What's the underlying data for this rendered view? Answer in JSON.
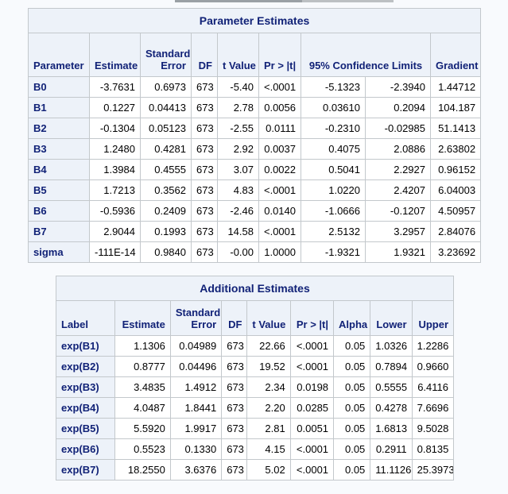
{
  "page": {
    "background_color": "#f8fafd",
    "header_bg_color": "#edf2f9",
    "header_text_color": "#112277",
    "border_color": "#c3c8cc",
    "data_text_color": "#000000"
  },
  "top_fragment": {
    "description": "bottom edge of a table cropped off at top of screenshot"
  },
  "tables": [
    {
      "title": "Parameter Estimates",
      "headers": [
        "Parameter",
        "Estimate",
        "Standard Error",
        "DF",
        "t Value",
        "Pr > |t|",
        "95% Confidence Limits",
        "Gradient"
      ],
      "rows": [
        [
          "B0",
          "-3.7631",
          "0.6973",
          "673",
          "-5.40",
          "<.0001",
          "-5.1323",
          "-2.3940",
          "1.44712"
        ],
        [
          "B1",
          "0.1227",
          "0.04413",
          "673",
          "2.78",
          "0.0056",
          "0.03610",
          "0.2094",
          "104.187"
        ],
        [
          "B2",
          "-0.1304",
          "0.05123",
          "673",
          "-2.55",
          "0.0111",
          "-0.2310",
          "-0.02985",
          "51.1413"
        ],
        [
          "B3",
          "1.2480",
          "0.4281",
          "673",
          "2.92",
          "0.0037",
          "0.4075",
          "2.0886",
          "2.63802"
        ],
        [
          "B4",
          "1.3984",
          "0.4555",
          "673",
          "3.07",
          "0.0022",
          "0.5041",
          "2.2927",
          "0.96152"
        ],
        [
          "B5",
          "1.7213",
          "0.3562",
          "673",
          "4.83",
          "<.0001",
          "1.0220",
          "2.4207",
          "6.04003"
        ],
        [
          "B6",
          "-0.5936",
          "0.2409",
          "673",
          "-2.46",
          "0.0140",
          "-1.0666",
          "-0.1207",
          "4.50957"
        ],
        [
          "B7",
          "2.9044",
          "0.1993",
          "673",
          "14.58",
          "<.0001",
          "2.5132",
          "3.2957",
          "2.84076"
        ],
        [
          "sigma",
          "-111E-14",
          "0.9840",
          "673",
          "-0.00",
          "1.0000",
          "-1.9321",
          "1.9321",
          "3.23692"
        ]
      ]
    },
    {
      "title": "Additional Estimates",
      "headers": [
        "Label",
        "Estimate",
        "Standard Error",
        "DF",
        "t Value",
        "Pr > |t|",
        "Alpha",
        "Lower",
        "Upper"
      ],
      "rows": [
        [
          "exp(B1)",
          "1.1306",
          "0.04989",
          "673",
          "22.66",
          "<.0001",
          "0.05",
          "1.0326",
          "1.2286"
        ],
        [
          "exp(B2)",
          "0.8777",
          "0.04496",
          "673",
          "19.52",
          "<.0001",
          "0.05",
          "0.7894",
          "0.9660"
        ],
        [
          "exp(B3)",
          "3.4835",
          "1.4912",
          "673",
          "2.34",
          "0.0198",
          "0.05",
          "0.5555",
          "6.4116"
        ],
        [
          "exp(B4)",
          "4.0487",
          "1.8441",
          "673",
          "2.20",
          "0.0285",
          "0.05",
          "0.4278",
          "7.6696"
        ],
        [
          "exp(B5)",
          "5.5920",
          "1.9917",
          "673",
          "2.81",
          "0.0051",
          "0.05",
          "1.6813",
          "9.5028"
        ],
        [
          "exp(B6)",
          "0.5523",
          "0.1330",
          "673",
          "4.15",
          "<.0001",
          "0.05",
          "0.2911",
          "0.8135"
        ],
        [
          "exp(B7)",
          "18.2550",
          "3.6376",
          "673",
          "5.02",
          "<.0001",
          "0.05",
          "11.1126",
          "25.3973"
        ]
      ]
    }
  ]
}
